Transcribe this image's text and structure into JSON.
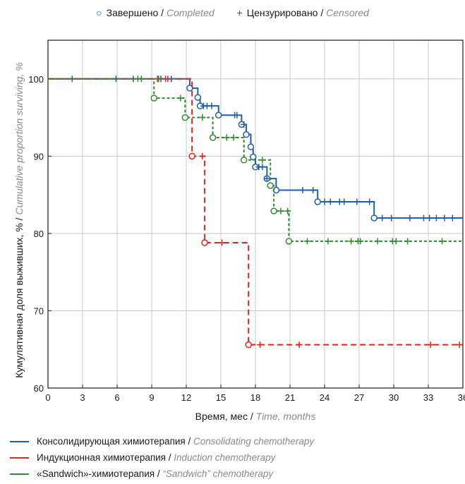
{
  "legend_top": {
    "completed_label": "Завершено",
    "completed_label_en": "Completed",
    "censored_label": "Цензурировано",
    "censored_label_en": "Censored",
    "completed_symbol": "○",
    "censored_symbol": "+"
  },
  "ylabel": {
    "ru": "Кумулятивная доля выживших,   % / ",
    "en": "Cumulative proportion surviving, %"
  },
  "xlabel": {
    "ru": "Время, мес / ",
    "en": "Time, months"
  },
  "series_legend": [
    {
      "ru": "Консолидирующая химиотерапия / ",
      "en": "Consolidating chemotherapy",
      "color": "#1f5fa8"
    },
    {
      "ru": "Индукционная химиотерапия / ",
      "en": "Induction chemotherapy",
      "color": "#e0221b"
    },
    {
      "ru": "«Sandwich»-химиотерапия / ",
      "en": "“Sandwich” chemotherapy",
      "color": "#2e8b2e"
    }
  ],
  "chart_data": {
    "type": "line",
    "subtype": "kaplan-meier step",
    "xlim": [
      0,
      36
    ],
    "ylim": [
      60,
      105
    ],
    "xticks": [
      0,
      3,
      6,
      9,
      12,
      15,
      18,
      21,
      24,
      27,
      30,
      33,
      36
    ],
    "yticks": [
      60,
      70,
      80,
      90,
      100
    ],
    "grid": true,
    "series": [
      {
        "name": "Консолидирующая химиотерапия / Consolidating chemotherapy",
        "color": "#1f5fa8",
        "dash": "solid",
        "steps": [
          [
            0,
            100
          ],
          [
            12.3,
            98.8
          ],
          [
            13.0,
            97.6
          ],
          [
            13.2,
            96.5
          ],
          [
            14.8,
            95.3
          ],
          [
            16.8,
            94.1
          ],
          [
            17.2,
            92.8
          ],
          [
            17.6,
            91.2
          ],
          [
            17.8,
            89.9
          ],
          [
            18.0,
            88.6
          ],
          [
            19.0,
            87.1
          ],
          [
            19.8,
            85.6
          ],
          [
            23.4,
            84.1
          ],
          [
            28.3,
            82.0
          ],
          [
            36,
            82.0
          ]
        ],
        "events": [
          [
            12.3,
            98.8
          ],
          [
            13.0,
            97.6
          ],
          [
            13.2,
            96.5
          ],
          [
            14.8,
            95.3
          ],
          [
            16.8,
            94.1
          ],
          [
            17.2,
            92.8
          ],
          [
            17.6,
            91.2
          ],
          [
            17.8,
            89.9
          ],
          [
            18.0,
            88.6
          ],
          [
            19.0,
            87.1
          ],
          [
            19.8,
            85.6
          ],
          [
            23.4,
            84.1
          ],
          [
            28.3,
            82.0
          ]
        ],
        "censored": [
          [
            2.1,
            100
          ],
          [
            5.9,
            100
          ],
          [
            7.4,
            100
          ],
          [
            9.8,
            100
          ],
          [
            10.4,
            100
          ],
          [
            10.7,
            100
          ],
          [
            13.5,
            96.5
          ],
          [
            13.8,
            96.5
          ],
          [
            14.2,
            96.5
          ],
          [
            16.2,
            95.3
          ],
          [
            16.4,
            95.3
          ],
          [
            17.0,
            94.1
          ],
          [
            18.3,
            88.6
          ],
          [
            18.6,
            88.6
          ],
          [
            19.0,
            87.1
          ],
          [
            22.1,
            85.6
          ],
          [
            23.0,
            85.6
          ],
          [
            24.0,
            84.1
          ],
          [
            24.5,
            84.1
          ],
          [
            25.3,
            84.1
          ],
          [
            25.7,
            84.1
          ],
          [
            26.8,
            84.1
          ],
          [
            27.9,
            84.1
          ],
          [
            29.0,
            82.0
          ],
          [
            29.8,
            82.0
          ],
          [
            31.4,
            82.0
          ],
          [
            32.6,
            82.0
          ],
          [
            33.1,
            82.0
          ],
          [
            33.7,
            82.0
          ],
          [
            34.4,
            82.0
          ],
          [
            35.1,
            82.0
          ]
        ]
      },
      {
        "name": "Индукционная химиотерапия / Induction chemotherapy",
        "color": "#e0221b",
        "dash": "8,5",
        "steps": [
          [
            0,
            100
          ],
          [
            12.4,
            100
          ],
          [
            12.5,
            90.0
          ],
          [
            13.6,
            78.8
          ],
          [
            17.4,
            65.6
          ],
          [
            36,
            65.6
          ]
        ],
        "events": [
          [
            12.5,
            90.0
          ],
          [
            13.6,
            78.8
          ],
          [
            17.4,
            65.6
          ]
        ],
        "censored": [
          [
            9.5,
            100
          ],
          [
            10.2,
            100
          ],
          [
            13.4,
            90.0
          ],
          [
            15.1,
            78.8
          ],
          [
            18.4,
            65.6
          ],
          [
            21.8,
            65.6
          ],
          [
            33.2,
            65.6
          ],
          [
            35.7,
            65.6
          ]
        ]
      },
      {
        "name": "«Sandwich»-химиотерапия / “Sandwich” chemotherapy",
        "color": "#2e8b2e",
        "dash": "4,3",
        "steps": [
          [
            0,
            100
          ],
          [
            9.2,
            97.5
          ],
          [
            11.9,
            95.0
          ],
          [
            14.3,
            92.4
          ],
          [
            17.0,
            89.5
          ],
          [
            19.3,
            86.2
          ],
          [
            19.6,
            82.9
          ],
          [
            20.9,
            79.0
          ],
          [
            36,
            79.0
          ]
        ],
        "events": [
          [
            9.2,
            97.5
          ],
          [
            11.9,
            95.0
          ],
          [
            14.3,
            92.4
          ],
          [
            17.0,
            89.5
          ],
          [
            19.3,
            86.2
          ],
          [
            19.6,
            82.9
          ],
          [
            20.9,
            79.0
          ]
        ],
        "censored": [
          [
            7.8,
            100
          ],
          [
            8.1,
            100
          ],
          [
            9.6,
            100
          ],
          [
            11.5,
            97.5
          ],
          [
            13.4,
            95.0
          ],
          [
            15.5,
            92.4
          ],
          [
            16.1,
            92.4
          ],
          [
            18.6,
            89.5
          ],
          [
            20.2,
            82.9
          ],
          [
            20.8,
            82.9
          ],
          [
            22.5,
            79.0
          ],
          [
            24.3,
            79.0
          ],
          [
            26.3,
            79.0
          ],
          [
            26.9,
            79.0
          ],
          [
            27.1,
            79.0
          ],
          [
            28.6,
            79.0
          ],
          [
            29.9,
            79.0
          ],
          [
            30.2,
            79.0
          ],
          [
            31.2,
            79.0
          ],
          [
            34.2,
            79.0
          ]
        ]
      }
    ]
  }
}
